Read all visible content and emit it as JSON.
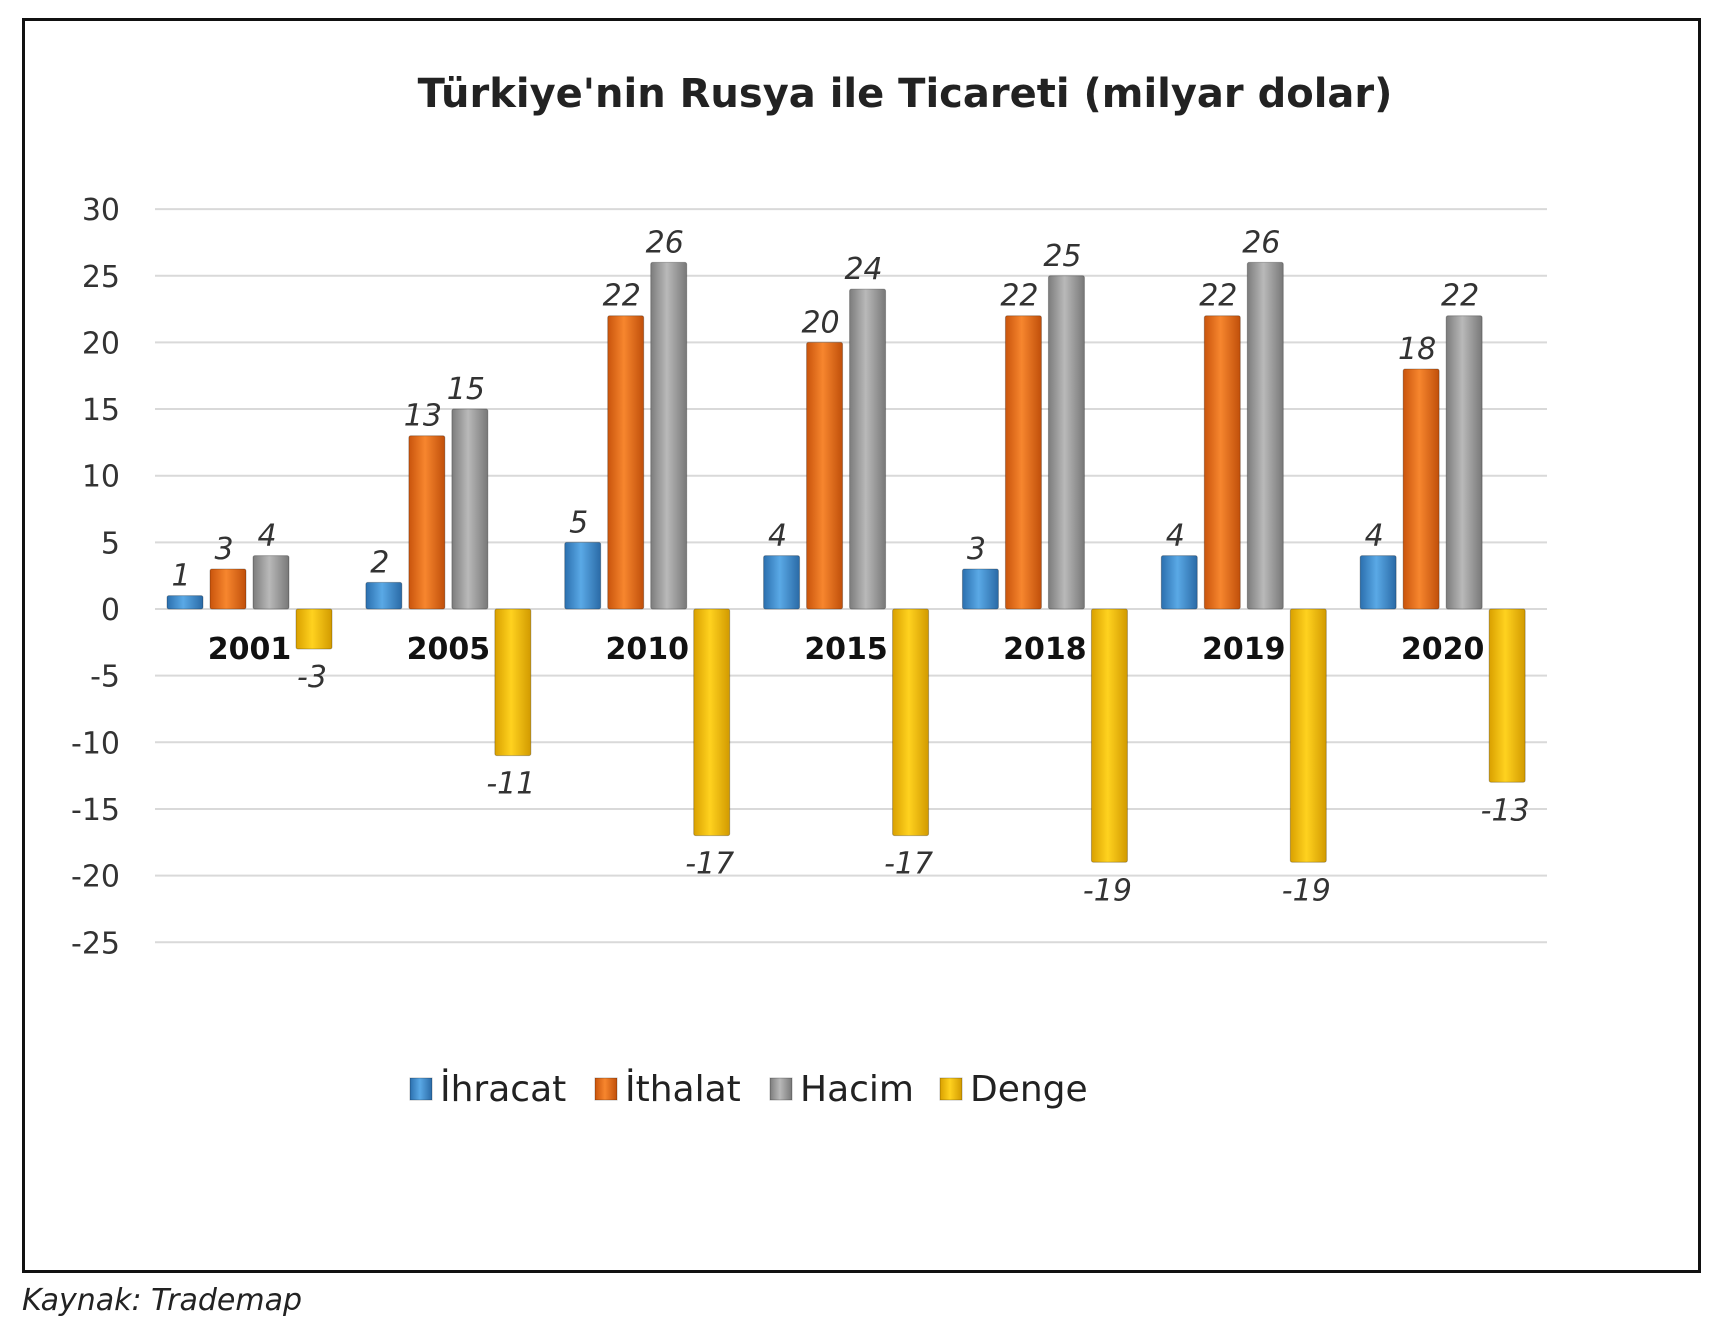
{
  "chart_data": {
    "type": "bar",
    "title": "Türkiye'nin Rusya ile Ticareti (milyar dolar)",
    "categories": [
      "2001",
      "2005",
      "2010",
      "2015",
      "2018",
      "2019",
      "2020"
    ],
    "series": [
      {
        "name": "İhracat",
        "color": "#3b8bd0",
        "values": [
          1,
          2,
          5,
          4,
          3,
          4,
          4
        ]
      },
      {
        "name": "İthalat",
        "color": "#ec6f1c",
        "values": [
          3,
          13,
          22,
          20,
          22,
          22,
          18
        ]
      },
      {
        "name": "Hacim",
        "color": "#9a9a9a",
        "values": [
          4,
          15,
          26,
          24,
          25,
          26,
          22
        ]
      },
      {
        "name": "Denge",
        "color": "#f2be0c",
        "values": [
          -3,
          -11,
          -17,
          -17,
          -19,
          -19,
          -13
        ]
      }
    ],
    "ylim": [
      -25,
      30
    ],
    "yticks": [
      "30",
      "25",
      "20",
      "15",
      "10",
      "5",
      "0",
      "-5",
      "-10",
      "-15",
      "-20",
      "-25"
    ],
    "grid": true,
    "legend_position": "bottom",
    "data_labels": true
  },
  "source": "Kaynak: Trademap"
}
